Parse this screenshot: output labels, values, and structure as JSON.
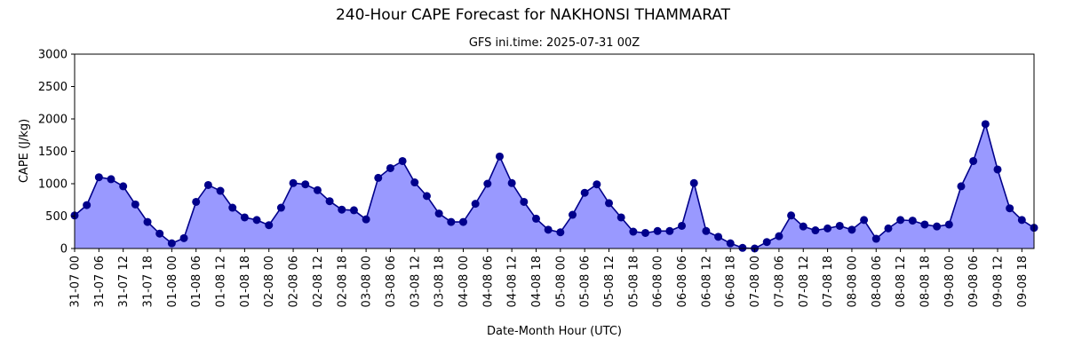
{
  "chart_data": {
    "type": "area",
    "title": "240-Hour CAPE Forecast for NAKHONSI THAMMARAT",
    "subtitle": "GFS ini.time: 2025-07-31 00Z",
    "xlabel": "Date-Month Hour (UTC)",
    "ylabel": "CAPE (J/kg)",
    "ylim": [
      0,
      3000
    ],
    "yticks": [
      0,
      500,
      1000,
      1500,
      2000,
      2500,
      3000
    ],
    "x_step_hours": 3,
    "xtick_every": 2,
    "xtick_labels": [
      "31-07 00",
      "31-07 06",
      "31-07 12",
      "31-07 18",
      "01-08 00",
      "01-08 06",
      "01-08 12",
      "01-08 18",
      "02-08 00",
      "02-08 06",
      "02-08 12",
      "02-08 18",
      "03-08 00",
      "03-08 06",
      "03-08 12",
      "03-08 18",
      "04-08 00",
      "04-08 06",
      "04-08 12",
      "04-08 18",
      "05-08 00",
      "05-08 06",
      "05-08 12",
      "05-08 18",
      "06-08 00",
      "06-08 06",
      "06-08 12",
      "06-08 18",
      "07-08 00",
      "07-08 06",
      "07-08 12",
      "07-08 18",
      "08-08 00",
      "08-08 06",
      "08-08 12",
      "08-08 18",
      "09-08 00",
      "09-08 06",
      "09-08 12",
      "09-08 18"
    ],
    "values": [
      510,
      670,
      1100,
      1070,
      960,
      680,
      410,
      230,
      80,
      160,
      720,
      980,
      890,
      630,
      480,
      440,
      360,
      630,
      1010,
      990,
      900,
      730,
      600,
      590,
      450,
      1090,
      1240,
      1350,
      1020,
      810,
      540,
      410,
      410,
      690,
      1000,
      1420,
      1010,
      720,
      460,
      290,
      250,
      520,
      860,
      990,
      700,
      480,
      260,
      240,
      270,
      270,
      350,
      1010,
      270,
      180,
      80,
      10,
      0,
      100,
      190,
      510,
      340,
      280,
      310,
      350,
      290,
      440,
      150,
      310,
      440,
      430,
      370,
      340,
      370,
      960,
      1350,
      1920,
      1220,
      620,
      440,
      320
    ],
    "colors": {
      "fill": "#9999ff",
      "line": "#00008b",
      "marker": "#00008b"
    },
    "grid": false
  }
}
